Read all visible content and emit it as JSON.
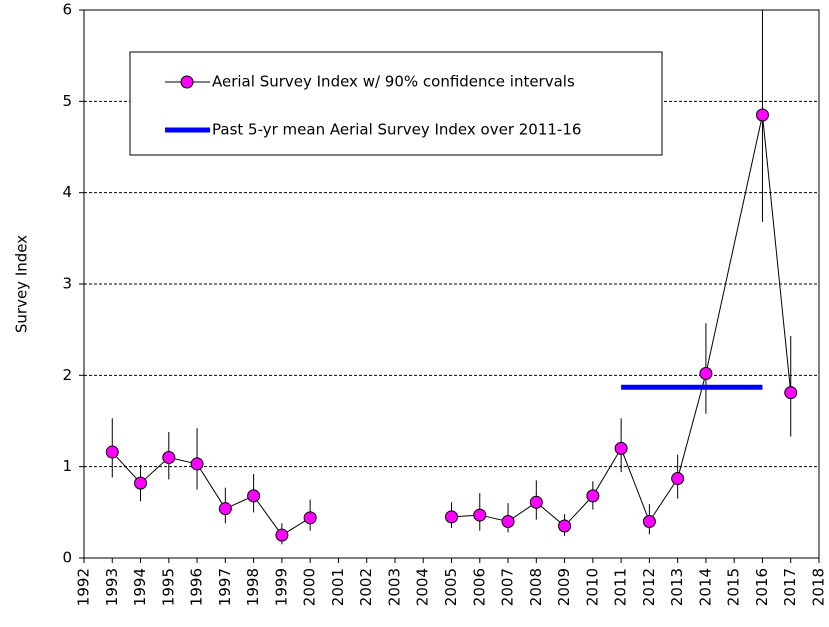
{
  "chart_data": {
    "type": "line",
    "ylabel": "Survey Index",
    "xlim": [
      1992,
      2018
    ],
    "xticks": [
      1992,
      1993,
      1994,
      1995,
      1996,
      1997,
      1998,
      1999,
      2000,
      2001,
      2002,
      2003,
      2004,
      2005,
      2006,
      2007,
      2008,
      2009,
      2010,
      2011,
      2012,
      2013,
      2014,
      2015,
      2016,
      2017,
      2018
    ],
    "ylim": [
      0,
      6
    ],
    "yticks": [
      0,
      1,
      2,
      3,
      4,
      5,
      6
    ],
    "grid": true,
    "series": [
      {
        "name": "Aerial Survey Index w/ 90% confidence intervals",
        "color": "#ff00ff",
        "x": [
          1993,
          1994,
          1995,
          1996,
          1997,
          1998,
          1999,
          2000,
          2001,
          2002,
          2003,
          2004,
          2005,
          2006,
          2007,
          2008,
          2009,
          2010,
          2011,
          2012,
          2013,
          2014,
          2016,
          2017
        ],
        "values": [
          1.16,
          0.82,
          1.1,
          1.03,
          0.54,
          0.68,
          0.25,
          0.44,
          null,
          null,
          null,
          null,
          0.45,
          0.47,
          0.4,
          0.61,
          0.35,
          0.68,
          1.2,
          0.4,
          0.87,
          2.02,
          4.85,
          1.81
        ],
        "lower": [
          0.88,
          0.62,
          0.86,
          0.75,
          0.38,
          0.5,
          0.15,
          0.3,
          null,
          null,
          null,
          null,
          0.33,
          0.3,
          0.28,
          0.42,
          0.24,
          0.53,
          0.94,
          0.26,
          0.65,
          1.58,
          3.68,
          1.33
        ],
        "upper": [
          1.53,
          1.02,
          1.38,
          1.42,
          0.77,
          0.92,
          0.38,
          0.64,
          null,
          null,
          null,
          null,
          0.61,
          0.71,
          0.6,
          0.85,
          0.48,
          0.84,
          1.53,
          0.59,
          1.13,
          2.57,
          6.1,
          2.43
        ]
      },
      {
        "name": "Past 5-yr mean Aerial Survey Index over 2011-16",
        "color": "#0000ff",
        "x": [
          2011,
          2016
        ],
        "values": [
          1.87,
          1.87
        ]
      }
    ]
  }
}
